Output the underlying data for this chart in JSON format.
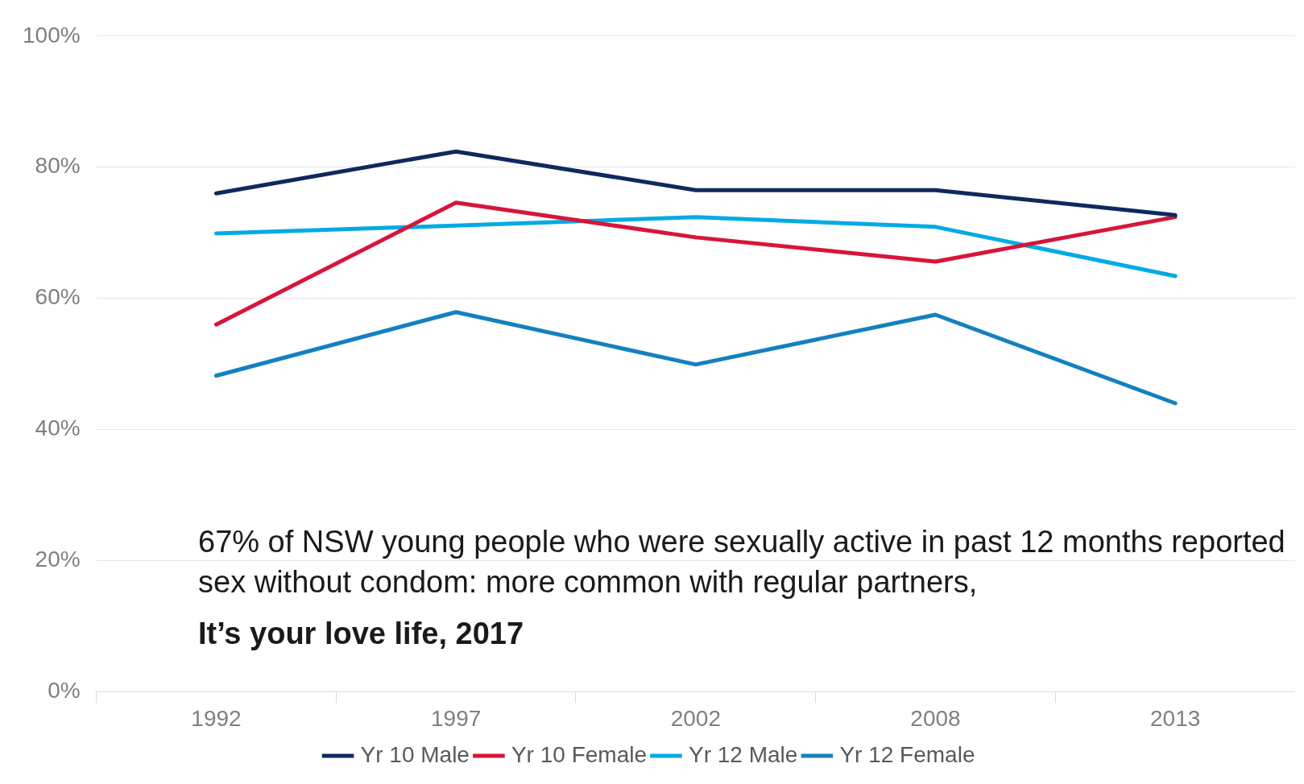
{
  "chart_data": {
    "type": "line",
    "categories": [
      "1992",
      "1997",
      "2002",
      "2008",
      "2013"
    ],
    "series": [
      {
        "name": "Yr 10 Male",
        "color": "#0d2a5e",
        "values": [
          76,
          82.4,
          76.5,
          76.5,
          72.7
        ]
      },
      {
        "name": "Yr 10 Female",
        "color": "#d7153a",
        "values": [
          56,
          74.6,
          69.3,
          65.6,
          72.4
        ]
      },
      {
        "name": "Yr 12 Male",
        "color": "#00abe6",
        "values": [
          69.9,
          71.1,
          72.4,
          70.9,
          63.4
        ]
      },
      {
        "name": "Yr 12 Female",
        "color": "#1580bf",
        "values": [
          48.2,
          57.9,
          49.9,
          57.5,
          44
        ]
      }
    ],
    "ylim": [
      0,
      100
    ],
    "yticks": [
      {
        "value": 0,
        "label": "0%"
      },
      {
        "value": 20,
        "label": "20%"
      },
      {
        "value": 40,
        "label": "40%"
      },
      {
        "value": 60,
        "label": "60%"
      },
      {
        "value": 80,
        "label": "80%"
      },
      {
        "value": 100,
        "label": "100%"
      }
    ],
    "grid": "y",
    "legend": "bottom",
    "marker": "none",
    "annotations": [
      "67% of NSW young people who were sexually active in past 12 months reported sex without condom: more common with regular partners,",
      "It’s your love life, 2017"
    ]
  }
}
